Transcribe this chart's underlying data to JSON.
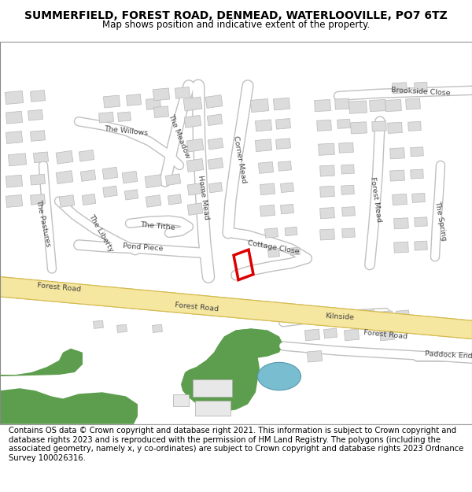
{
  "title": "SUMMERFIELD, FOREST ROAD, DENMEAD, WATERLOOVILLE, PO7 6TZ",
  "subtitle": "Map shows position and indicative extent of the property.",
  "footer": "Contains OS data © Crown copyright and database right 2021. This information is subject to Crown copyright and database rights 2023 and is reproduced with the permission of HM Land Registry. The polygons (including the associated geometry, namely x, y co-ordinates) are subject to Crown copyright and database rights 2023 Ordnance Survey 100026316.",
  "map_bg": "#f0efec",
  "road_yellow": "#f5e6a0",
  "road_yellow_border": "#d4bb50",
  "road_white": "#ffffff",
  "road_white_border": "#c8c8c8",
  "building_fill": "#dcdcdc",
  "building_edge": "#b8b8b8",
  "green_fill": "#5d9e4e",
  "blue_fill": "#78bdd0",
  "plot_color": "#dd0000",
  "title_fontsize": 10,
  "subtitle_fontsize": 8.5,
  "footer_fontsize": 7.2,
  "label_fontsize": 6.8,
  "label_color": "#444444"
}
